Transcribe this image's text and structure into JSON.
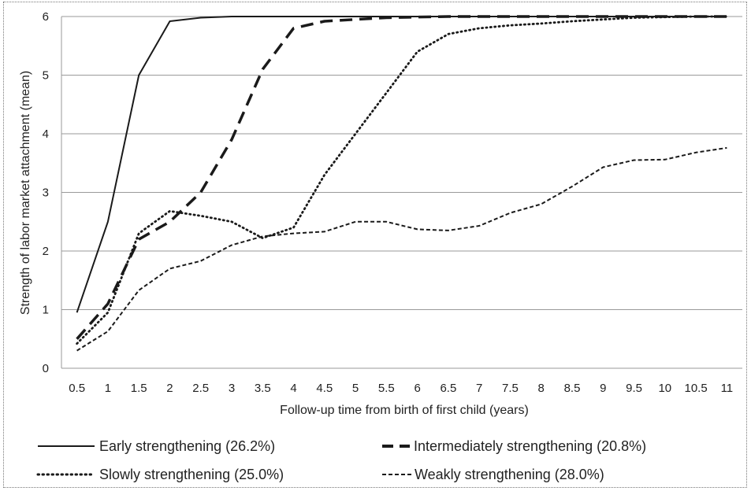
{
  "chart_data": {
    "type": "line",
    "title": "",
    "xlabel": "Follow-up time  from birth of first child (years)",
    "ylabel": "Strength of  labor market attachment (mean)",
    "ylim": [
      0,
      6
    ],
    "yticks": [
      "0",
      "1",
      "2",
      "3",
      "4",
      "5",
      "6"
    ],
    "categories": [
      "0.5",
      "1",
      "1.5",
      "2",
      "2.5",
      "3",
      "3.5",
      "4",
      "4.5",
      "5",
      "5.5",
      "6",
      "6.5",
      "7",
      "7.5",
      "8",
      "8.5",
      "9",
      "9.5",
      "10",
      "10.5",
      "11"
    ],
    "grid": "horizontal",
    "legend_position": "bottom",
    "series": [
      {
        "name": "Early strengthening (26.2%)",
        "style": "solid",
        "values": [
          0.95,
          2.5,
          5.0,
          5.92,
          5.98,
          6.0,
          6.0,
          6.0,
          6.0,
          6.0,
          6.0,
          6.0,
          6.0,
          6.0,
          6.0,
          6.0,
          6.0,
          6.0,
          6.0,
          6.0,
          6.0,
          6.0
        ]
      },
      {
        "name": "Intermediately strengthening (20.8%)",
        "style": "long-dash",
        "values": [
          0.5,
          1.1,
          2.2,
          2.5,
          3.0,
          3.9,
          5.1,
          5.8,
          5.92,
          5.95,
          5.98,
          5.99,
          6.0,
          6.0,
          6.0,
          6.0,
          6.0,
          6.0,
          6.0,
          6.0,
          6.0,
          6.0
        ]
      },
      {
        "name": "Slowly strengthening (25.0%)",
        "style": "dotted",
        "values": [
          0.42,
          0.95,
          2.3,
          2.68,
          2.6,
          2.5,
          2.22,
          2.4,
          3.3,
          4.0,
          4.7,
          5.4,
          5.7,
          5.8,
          5.85,
          5.88,
          5.92,
          5.95,
          5.98,
          5.99,
          6.0,
          6.0
        ]
      },
      {
        "name": "Weakly strengthening (28.0%)",
        "style": "short-dash",
        "values": [
          0.3,
          0.63,
          1.33,
          1.7,
          1.83,
          2.1,
          2.25,
          2.3,
          2.33,
          2.5,
          2.5,
          2.37,
          2.35,
          2.43,
          2.65,
          2.8,
          3.1,
          3.43,
          3.55,
          3.56,
          3.68,
          3.76
        ]
      }
    ]
  }
}
